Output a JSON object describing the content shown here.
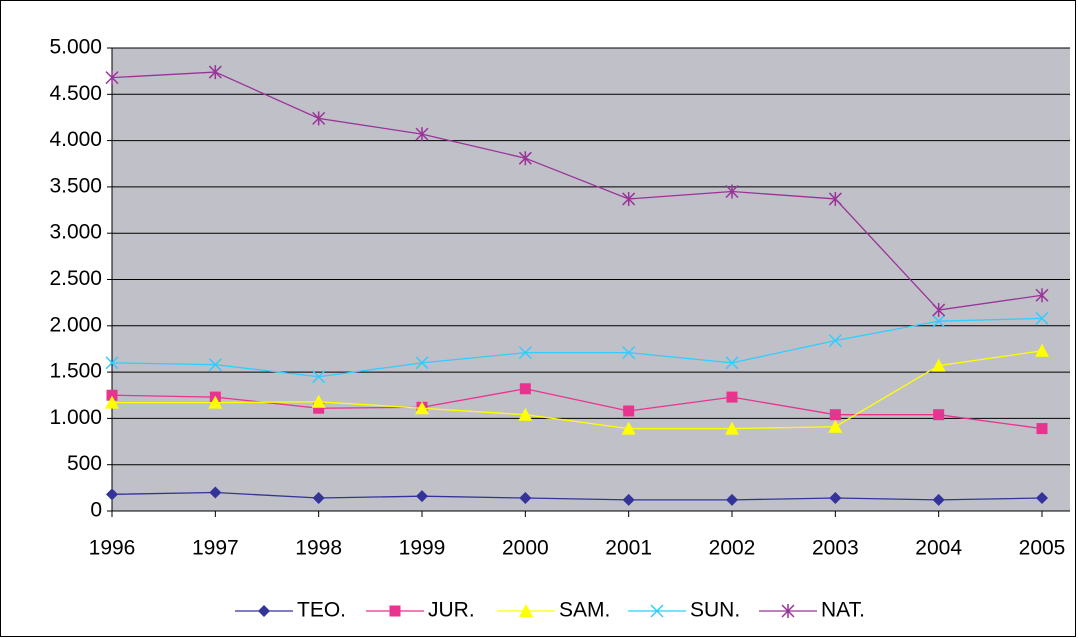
{
  "chart_data": {
    "type": "line",
    "categories": [
      "1996",
      "1997",
      "1998",
      "1999",
      "2000",
      "2001",
      "2002",
      "2003",
      "2004",
      "2005"
    ],
    "series": [
      {
        "name": "TEO.",
        "color": "#333399",
        "marker": "diamond",
        "values": [
          180,
          200,
          140,
          160,
          140,
          120,
          120,
          140,
          120,
          140
        ]
      },
      {
        "name": "JUR.",
        "color": "#e8338f",
        "marker": "square",
        "values": [
          1250,
          1230,
          1110,
          1120,
          1320,
          1080,
          1230,
          1040,
          1040,
          890
        ]
      },
      {
        "name": "SAM.",
        "color": "#ffff00",
        "marker": "triangle",
        "values": [
          1170,
          1170,
          1180,
          1110,
          1040,
          890,
          890,
          910,
          1570,
          1730
        ]
      },
      {
        "name": "SUN.",
        "color": "#33ccff",
        "marker": "x",
        "values": [
          1600,
          1580,
          1450,
          1600,
          1710,
          1710,
          1600,
          1840,
          2050,
          2080
        ]
      },
      {
        "name": "NAT.",
        "color": "#993399",
        "marker": "star",
        "values": [
          4680,
          4740,
          4240,
          4070,
          3810,
          3370,
          3450,
          3370,
          2170,
          2330
        ]
      }
    ],
    "ylim": [
      0,
      5000
    ],
    "yticks": [
      0,
      500,
      {
        "value": 1000,
        "label": "1.000"
      },
      {
        "value": 1500,
        "label": "1.500"
      },
      {
        "value": 2000,
        "label": "2.000"
      },
      {
        "value": 2500,
        "label": "2.500"
      },
      {
        "value": 3000,
        "label": "3.000"
      },
      {
        "value": 3500,
        "label": "3.500"
      },
      {
        "value": 4000,
        "label": "4.000"
      },
      {
        "value": 4500,
        "label": "4.500"
      },
      {
        "value": 5000,
        "label": "5.000"
      }
    ],
    "grid": true,
    "legend": "bottom"
  }
}
